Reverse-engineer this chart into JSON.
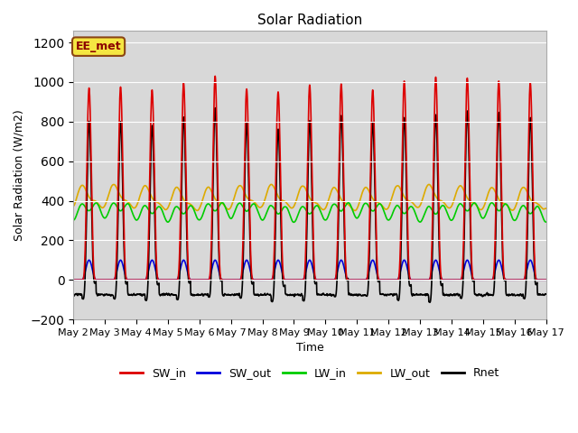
{
  "title": "Solar Radiation",
  "xlabel": "Time",
  "ylabel": "Solar Radiation (W/m2)",
  "ylim": [
    -200,
    1260
  ],
  "yticks": [
    -200,
    0,
    200,
    400,
    600,
    800,
    1000,
    1200
  ],
  "n_days": 15,
  "points_per_day": 288,
  "station_label": "EE_met",
  "sw_in_peaks": [
    970,
    975,
    960,
    995,
    1030,
    965,
    950,
    985,
    990,
    960,
    1005,
    1025,
    1020,
    1005,
    995
  ],
  "sw_out_peak": 100,
  "lw_in_mean": 350,
  "lw_out_mean": 410,
  "rnet_night": -75,
  "colors": {
    "SW_in": "#dd0000",
    "SW_out": "#0000dd",
    "LW_in": "#00cc00",
    "LW_out": "#ddaa00",
    "Rnet": "#000000",
    "bg_outer": "#ffffff",
    "bg_inner": "#d8d8d8",
    "grid": "#ffffff"
  },
  "line_widths": {
    "SW_in": 1.2,
    "SW_out": 1.2,
    "LW_in": 1.2,
    "LW_out": 1.2,
    "Rnet": 1.2
  },
  "legend_entries": [
    "SW_in",
    "SW_out",
    "LW_in",
    "LW_out",
    "Rnet"
  ],
  "fig_width": 6.4,
  "fig_height": 4.8,
  "title_fontsize": 11,
  "label_fontsize": 9,
  "tick_fontsize": 8,
  "legend_fontsize": 9
}
